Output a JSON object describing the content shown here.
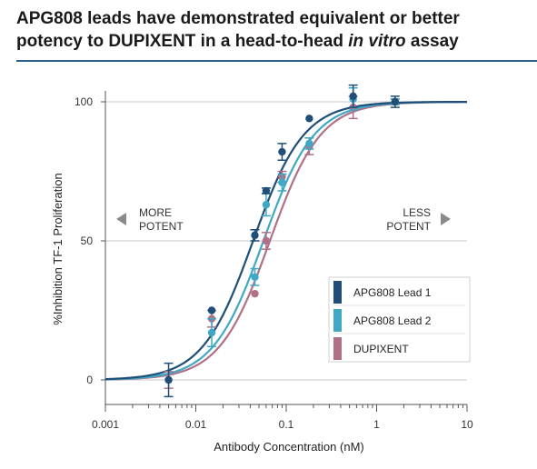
{
  "header": {
    "title_line1": "APG808 leads have demonstrated equivalent or better",
    "title_line2_a": "potency to DUPIXENT in a head-to-head ",
    "title_line2_b": "in vitro",
    "title_line2_c": " assay"
  },
  "annotations": {
    "more_potent_line1": "MORE",
    "more_potent_line2": "POTENT",
    "less_potent_line1": "LESS",
    "less_potent_line2": "POTENT"
  },
  "colors": {
    "lead1": "#1f4e79",
    "lead2": "#3fa8c4",
    "dupixent": "#b07088",
    "grid": "#c8c8c8",
    "axis": "#555555",
    "title_rule": "#2b5f8a"
  },
  "chart_data": {
    "type": "scatter",
    "xlabel": "Antibody Concentration (nM)",
    "ylabel": "%Inhibition TF-1 Proliferation",
    "x_scale": "log",
    "xlim": [
      0.001,
      10
    ],
    "ylim": [
      -5,
      105
    ],
    "x_ticks": [
      0.001,
      0.01,
      0.1,
      1,
      10
    ],
    "x_tick_labels": [
      "0.001",
      "0.01",
      "0.1",
      "1",
      "10"
    ],
    "y_ticks": [
      0,
      50,
      100
    ],
    "y_tick_labels": [
      "0",
      "50",
      "100"
    ],
    "grid": true,
    "legend_position": "lower-right",
    "series": [
      {
        "name": "APG808 Lead 1",
        "color_key": "lead1",
        "ec50": 0.043,
        "hill": 1.55,
        "points": [
          {
            "x": 0.005,
            "y": 0,
            "err": 6
          },
          {
            "x": 0.015,
            "y": 25,
            "err": 0
          },
          {
            "x": 0.045,
            "y": 52,
            "err": 2
          },
          {
            "x": 0.06,
            "y": 68,
            "err": 1
          },
          {
            "x": 0.09,
            "y": 82,
            "err": 3
          },
          {
            "x": 0.18,
            "y": 94,
            "err": 0
          },
          {
            "x": 0.55,
            "y": 102,
            "err": 4
          },
          {
            "x": 1.6,
            "y": 100,
            "err": 2
          }
        ]
      },
      {
        "name": "APG808 Lead 2",
        "color_key": "lead2",
        "ec50": 0.056,
        "hill": 1.55,
        "points": [
          {
            "x": 0.015,
            "y": 17,
            "err": 5
          },
          {
            "x": 0.045,
            "y": 37,
            "err": 3
          },
          {
            "x": 0.06,
            "y": 63,
            "err": 4
          },
          {
            "x": 0.09,
            "y": 71,
            "err": 3
          },
          {
            "x": 0.18,
            "y": 85,
            "err": 2
          },
          {
            "x": 0.55,
            "y": 101,
            "err": 4
          },
          {
            "x": 1.6,
            "y": 100,
            "err": 1
          }
        ]
      },
      {
        "name": "DUPIXENT",
        "color_key": "dupixent",
        "ec50": 0.066,
        "hill": 1.55,
        "points": [
          {
            "x": 0.005,
            "y": 0,
            "err": 3
          },
          {
            "x": 0.015,
            "y": 22,
            "err": 3
          },
          {
            "x": 0.045,
            "y": 31,
            "err": 0
          },
          {
            "x": 0.06,
            "y": 50,
            "err": 3
          },
          {
            "x": 0.09,
            "y": 73,
            "err": 2
          },
          {
            "x": 0.18,
            "y": 84,
            "err": 3
          },
          {
            "x": 0.55,
            "y": 98,
            "err": 4
          },
          {
            "x": 1.6,
            "y": 100,
            "err": 1
          }
        ]
      }
    ]
  }
}
